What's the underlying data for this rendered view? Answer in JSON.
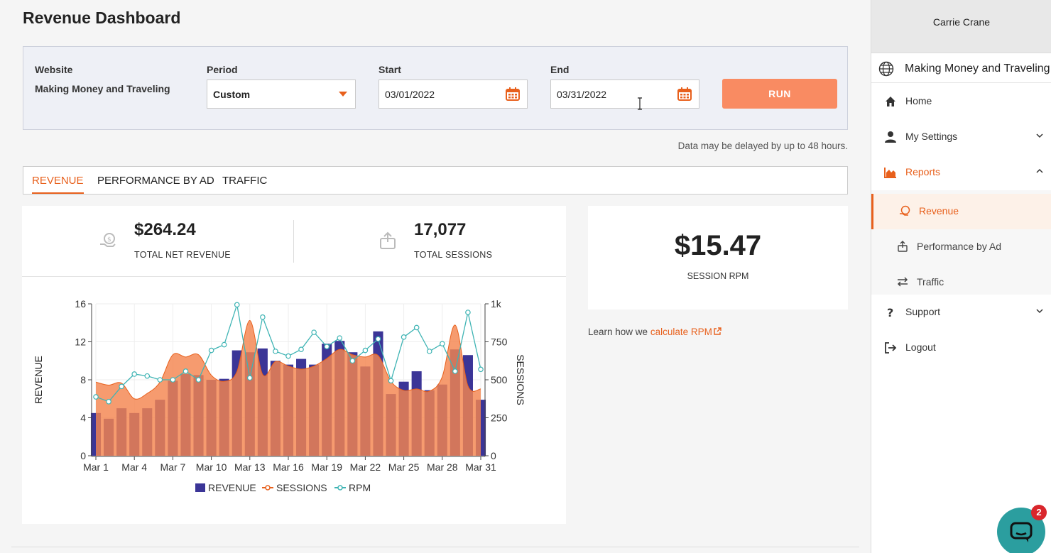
{
  "page": {
    "title": "Revenue Dashboard"
  },
  "filters": {
    "website_label": "Website",
    "website_value": "Making Money and Traveling",
    "period_label": "Period",
    "period_value": "Custom",
    "start_label": "Start",
    "start_value": "03/01/2022",
    "end_label": "End",
    "end_value": "03/31/2022",
    "run_label": "RUN"
  },
  "delay_note": "Data may be delayed by up to 48 hours.",
  "tabs": [
    {
      "label": "REVENUE",
      "active": true
    },
    {
      "label": "PERFORMANCE BY AD",
      "active": false
    },
    {
      "label": "TRAFFIC",
      "active": false
    }
  ],
  "stats": {
    "revenue_value": "$264.24",
    "revenue_label": "TOTAL NET REVENUE",
    "sessions_value": "17,077",
    "sessions_label": "TOTAL SESSIONS"
  },
  "rpm": {
    "value": "$15.47",
    "label": "SESSION RPM",
    "learn_prefix": "Learn how we ",
    "learn_link": "calculate RPM"
  },
  "sidebar": {
    "user": "Carrie Crane",
    "site": "Making Money and Traveling",
    "items": [
      {
        "label": "Home",
        "icon": "home-icon"
      },
      {
        "label": "My Settings",
        "icon": "user-icon"
      },
      {
        "label": "Reports",
        "icon": "area-chart-icon"
      },
      {
        "label": "Support",
        "icon": "question-icon"
      },
      {
        "label": "Logout",
        "icon": "logout-icon"
      }
    ],
    "sub_items": [
      {
        "label": "Revenue",
        "icon": "revenue-icon",
        "active": true
      },
      {
        "label": "Performance by Ad",
        "icon": "ad-icon",
        "active": false
      },
      {
        "label": "Traffic",
        "icon": "traffic-icon",
        "active": false
      }
    ]
  },
  "chat": {
    "badge": "2"
  },
  "colors": {
    "accent": "#e8601c",
    "revenue_bar": "#3b3597",
    "sessions_area": "#f4854f",
    "rpm_line": "#3fb4b4"
  },
  "chart_data": {
    "type": "bar",
    "x": [
      "Mar 1",
      "Mar 2",
      "Mar 3",
      "Mar 4",
      "Mar 5",
      "Mar 6",
      "Mar 7",
      "Mar 8",
      "Mar 9",
      "Mar 10",
      "Mar 11",
      "Mar 12",
      "Mar 13",
      "Mar 14",
      "Mar 15",
      "Mar 16",
      "Mar 17",
      "Mar 18",
      "Mar 19",
      "Mar 20",
      "Mar 21",
      "Mar 22",
      "Mar 23",
      "Mar 24",
      "Mar 25",
      "Mar 26",
      "Mar 27",
      "Mar 28",
      "Mar 29",
      "Mar 30",
      "Mar 31"
    ],
    "x_tick_labels": [
      "Mar 1",
      "Mar 4",
      "Mar 7",
      "Mar 10",
      "Mar 13",
      "Mar 16",
      "Mar 19",
      "Mar 22",
      "Mar 25",
      "Mar 28",
      "Mar 31"
    ],
    "ylabel": "REVENUE",
    "y2label": "SESSIONS",
    "ylim": [
      0,
      16
    ],
    "y_ticks": [
      0,
      4,
      8,
      12,
      16
    ],
    "y2lim": [
      0,
      1000
    ],
    "y2_tick_labels": [
      "0",
      "250",
      "500",
      "750",
      "1k"
    ],
    "legend": [
      "REVENUE",
      "SESSIONS",
      "RPM"
    ],
    "legend_position": "bottom",
    "series": [
      {
        "name": "REVENUE",
        "kind": "bar",
        "axis": "left",
        "values": [
          4.5,
          3.9,
          5.0,
          4.5,
          5.0,
          5.9,
          7.9,
          8.6,
          8.5,
          8.0,
          8.1,
          11.1,
          10.9,
          11.3,
          10.0,
          9.6,
          10.2,
          9.6,
          11.8,
          12.1,
          10.9,
          9.4,
          13.1,
          6.5,
          7.8,
          8.9,
          6.9,
          7.5,
          11.2,
          10.6,
          5.9
        ]
      },
      {
        "name": "SESSIONS",
        "kind": "area",
        "axis": "right",
        "values": [
          485,
          465,
          478,
          375,
          410,
          485,
          665,
          650,
          665,
          530,
          490,
          555,
          890,
          535,
          620,
          590,
          570,
          590,
          640,
          700,
          665,
          650,
          660,
          490,
          430,
          440,
          425,
          520,
          860,
          460,
          440
        ]
      },
      {
        "name": "RPM",
        "kind": "line",
        "axis": "left",
        "values": [
          6.2,
          5.7,
          7.3,
          8.6,
          8.4,
          8.0,
          8.0,
          8.9,
          8.0,
          11.1,
          11.7,
          15.9,
          8.2,
          14.6,
          11.0,
          10.5,
          11.2,
          13.0,
          11.5,
          12.4,
          10.0,
          11.1,
          12.3,
          7.9,
          12.5,
          13.5,
          11.0,
          11.8,
          8.9,
          15.1,
          9.1
        ]
      }
    ]
  }
}
